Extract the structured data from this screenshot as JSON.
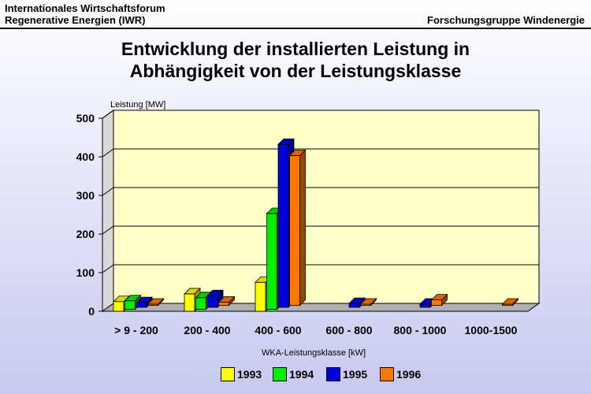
{
  "header": {
    "left_line1": "Internationales Wirtschaftsforum",
    "left_line2": "Regenerative Energien (IWR)",
    "right": "Forschungsgruppe Windenergie"
  },
  "chart_data": {
    "type": "bar",
    "title_line1": "Entwicklung der installierten Leistung in",
    "title_line2": "Abhängigkeit von der Leistungsklasse",
    "ylabel": "Leistung [MW]",
    "xlabel": "WKA-Leistungsklasse [kW]",
    "ylim": [
      0,
      500
    ],
    "yticks": [
      0,
      100,
      200,
      300,
      400,
      500
    ],
    "grid": true,
    "legend_position": "bottom",
    "categories": [
      "> 9 - 200",
      "200 - 400",
      "400 - 600",
      "600 - 800",
      "800 - 1000",
      "1000-1500"
    ],
    "series": [
      {
        "name": "1993",
        "color": "#ffff00",
        "values": [
          25,
          45,
          75,
          0,
          0,
          0
        ]
      },
      {
        "name": "1994",
        "color": "#00ee00",
        "values": [
          22,
          30,
          248,
          0,
          0,
          0
        ]
      },
      {
        "name": "1995",
        "color": "#0000dd",
        "values": [
          12,
          30,
          422,
          10,
          8,
          0
        ]
      },
      {
        "name": "1996",
        "color": "#ff7700",
        "values": [
          3,
          8,
          388,
          3,
          14,
          3
        ]
      }
    ]
  }
}
